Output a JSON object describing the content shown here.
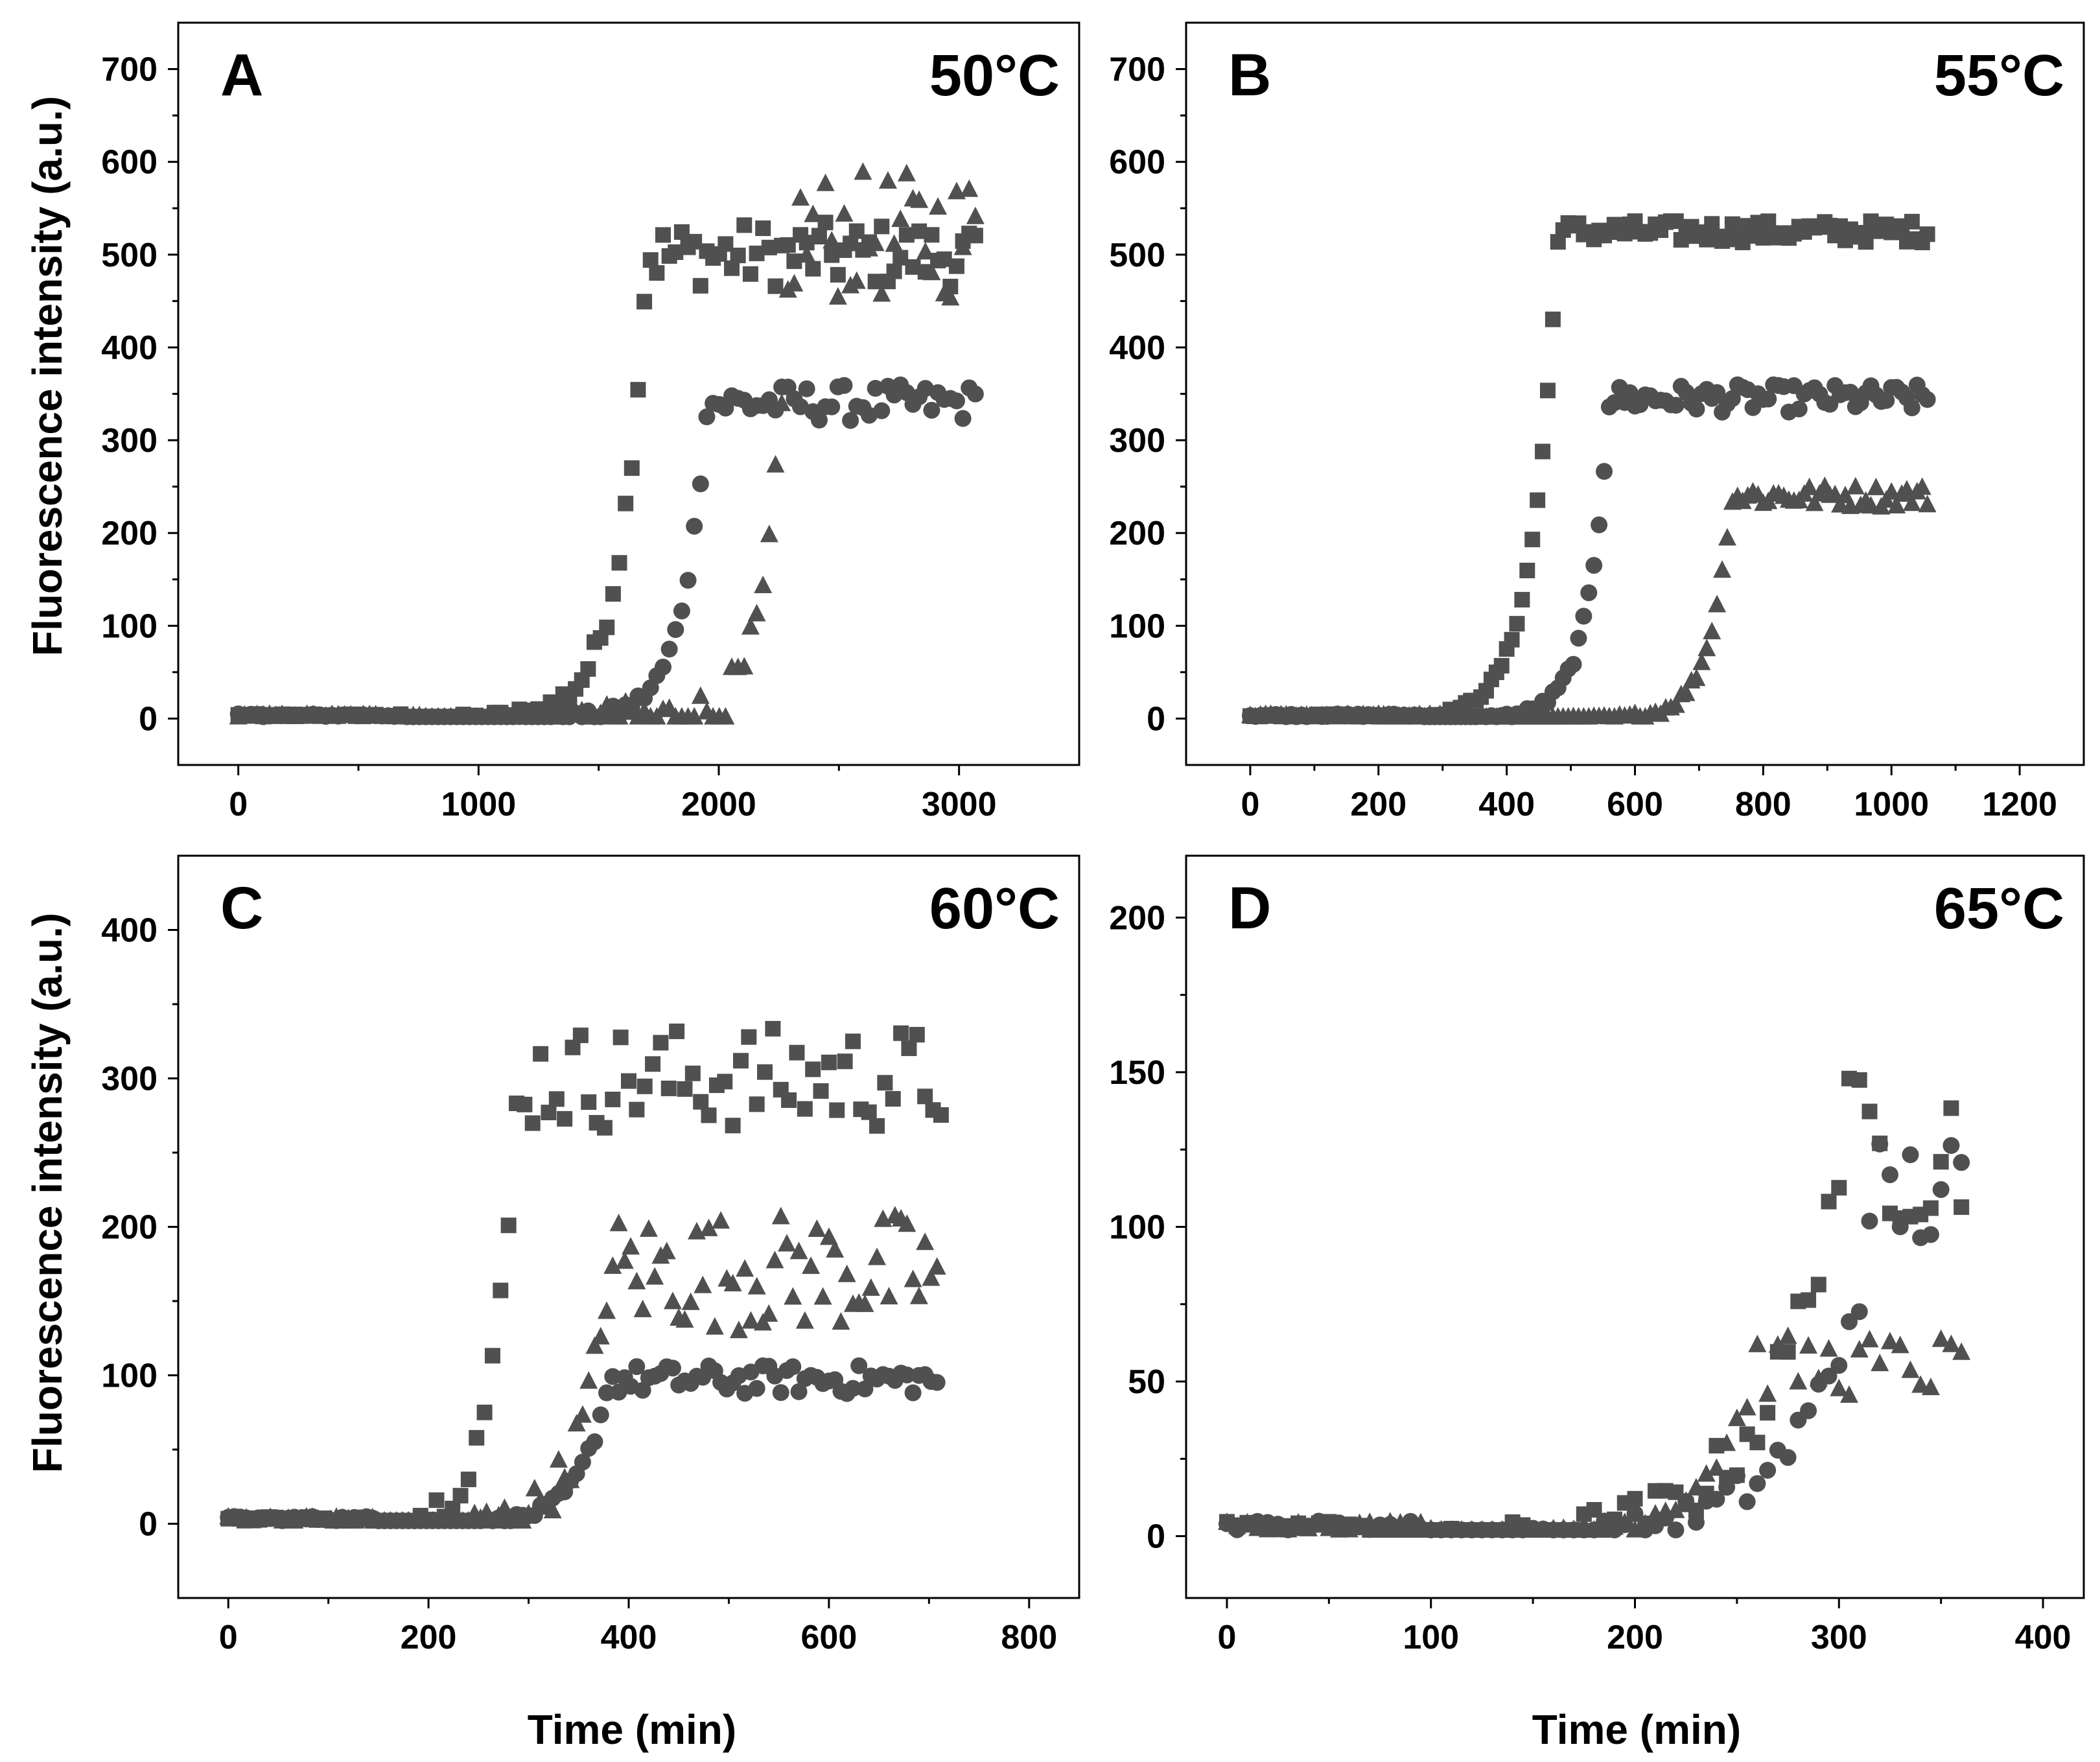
{
  "figure": {
    "ylabel": "Fluorescence intensity (a.u.)",
    "xlabel": "Time (min)",
    "marker_color": "#505050"
  },
  "chart_data": [
    {
      "type": "scatter",
      "panel": "A",
      "temperature": "50°C",
      "xlim": [
        -250,
        3500
      ],
      "ylim": [
        -50,
        750
      ],
      "xticks": [
        0,
        1000,
        2000,
        3000
      ],
      "yticks": [
        0,
        100,
        200,
        300,
        400,
        500,
        600,
        700
      ],
      "xtick_labels": [
        "0",
        "1000",
        "2000",
        "3000"
      ],
      "ytick_labels": [
        "0",
        "100",
        "200",
        "300",
        "400",
        "500",
        "600",
        "700"
      ],
      "series": [
        {
          "name": "square",
          "marker": "square",
          "x_max": 3080,
          "dx": 26,
          "onset": 700,
          "mid": 1520,
          "rise": 1700,
          "k": 0.009,
          "plateau": 500,
          "spread": 35
        },
        {
          "name": "circle",
          "marker": "circle",
          "x_max": 3080,
          "dx": 26,
          "onset": 700,
          "mid": 1840,
          "rise": 1950,
          "k": 0.01,
          "plateau": 340,
          "spread": 20
        },
        {
          "name": "triangle",
          "marker": "triangle",
          "x_max": 3080,
          "dx": 26,
          "onset": 800,
          "mid": 2200,
          "rise": 2300,
          "k": 0.012,
          "plateau": 520,
          "spread": 70
        }
      ]
    },
    {
      "type": "scatter",
      "panel": "B",
      "temperature": "55°C",
      "xlim": [
        -100,
        1300
      ],
      "ylim": [
        -50,
        750
      ],
      "xticks": [
        0,
        200,
        400,
        600,
        800,
        1000,
        1200
      ],
      "yticks": [
        0,
        100,
        200,
        300,
        400,
        500,
        600,
        700
      ],
      "xtick_labels": [
        "0",
        "200",
        "400",
        "600",
        "800",
        "1000",
        "1200"
      ],
      "ytick_labels": [
        "0",
        "100",
        "200",
        "300",
        "400",
        "500",
        "600",
        "700"
      ],
      "series": [
        {
          "name": "square",
          "marker": "square",
          "x_max": 1060,
          "dx": 8,
          "onset": 200,
          "mid": 380,
          "rise": 480,
          "k": 0.025,
          "plateau": 525,
          "spread": 12
        },
        {
          "name": "circle",
          "marker": "circle",
          "x_max": 1060,
          "dx": 8,
          "onset": 270,
          "mid": 470,
          "rise": 560,
          "k": 0.03,
          "plateau": 345,
          "spread": 15
        },
        {
          "name": "triangle",
          "marker": "triangle",
          "x_max": 1060,
          "dx": 8,
          "onset": 350,
          "mid": 650,
          "rise": 750,
          "k": 0.03,
          "plateau": 240,
          "spread": 12
        }
      ]
    },
    {
      "type": "scatter",
      "panel": "C",
      "temperature": "60°C",
      "xlim": [
        -50,
        850
      ],
      "ylim": [
        -50,
        450
      ],
      "xticks": [
        0,
        200,
        400,
        600,
        800
      ],
      "yticks": [
        0,
        100,
        200,
        300,
        400
      ],
      "xtick_labels": [
        "0",
        "200",
        "400",
        "600",
        "800"
      ],
      "ytick_labels": [
        "0",
        "100",
        "200",
        "300",
        "400"
      ],
      "series": [
        {
          "name": "square",
          "marker": "square",
          "x_max": 712,
          "dx": 8,
          "onset": 100,
          "mid": 200,
          "rise": 290,
          "k": 0.04,
          "plateau": 300,
          "spread": 35
        },
        {
          "name": "circle",
          "marker": "circle",
          "x_max": 712,
          "dx": 6,
          "onset": 150,
          "mid": 300,
          "rise": 380,
          "k": 0.035,
          "plateau": 97,
          "spread": 10
        },
        {
          "name": "triangle",
          "marker": "triangle",
          "x_max": 712,
          "dx": 6,
          "onset": 150,
          "mid": 320,
          "rise": 380,
          "k": 0.035,
          "plateau": 170,
          "spread": 40
        }
      ]
    },
    {
      "type": "scatter",
      "panel": "D",
      "temperature": "65°C",
      "xlim": [
        -20,
        420
      ],
      "ylim": [
        -20,
        220
      ],
      "xticks": [
        0,
        100,
        200,
        300,
        400
      ],
      "yticks": [
        0,
        50,
        100,
        150,
        200
      ],
      "xtick_labels": [
        "0",
        "100",
        "200",
        "300",
        "400"
      ],
      "ytick_labels": [
        "0",
        "50",
        "100",
        "150",
        "200"
      ],
      "series": [
        {
          "name": "square",
          "marker": "square",
          "x_max": 360,
          "dx": 5,
          "onset": 70,
          "mid": 180,
          "rise": 300,
          "k": 0.03,
          "plateau": 125,
          "spread": 25
        },
        {
          "name": "circle",
          "marker": "circle",
          "x_max": 360,
          "dx": 5,
          "onset": 100,
          "mid": 230,
          "rise": 320,
          "k": 0.03,
          "plateau": 110,
          "spread": 20
        },
        {
          "name": "triangle",
          "marker": "triangle",
          "x_max": 360,
          "dx": 5,
          "onset": 110,
          "mid": 210,
          "rise": 260,
          "k": 0.04,
          "plateau": 55,
          "spread": 10
        }
      ]
    }
  ]
}
